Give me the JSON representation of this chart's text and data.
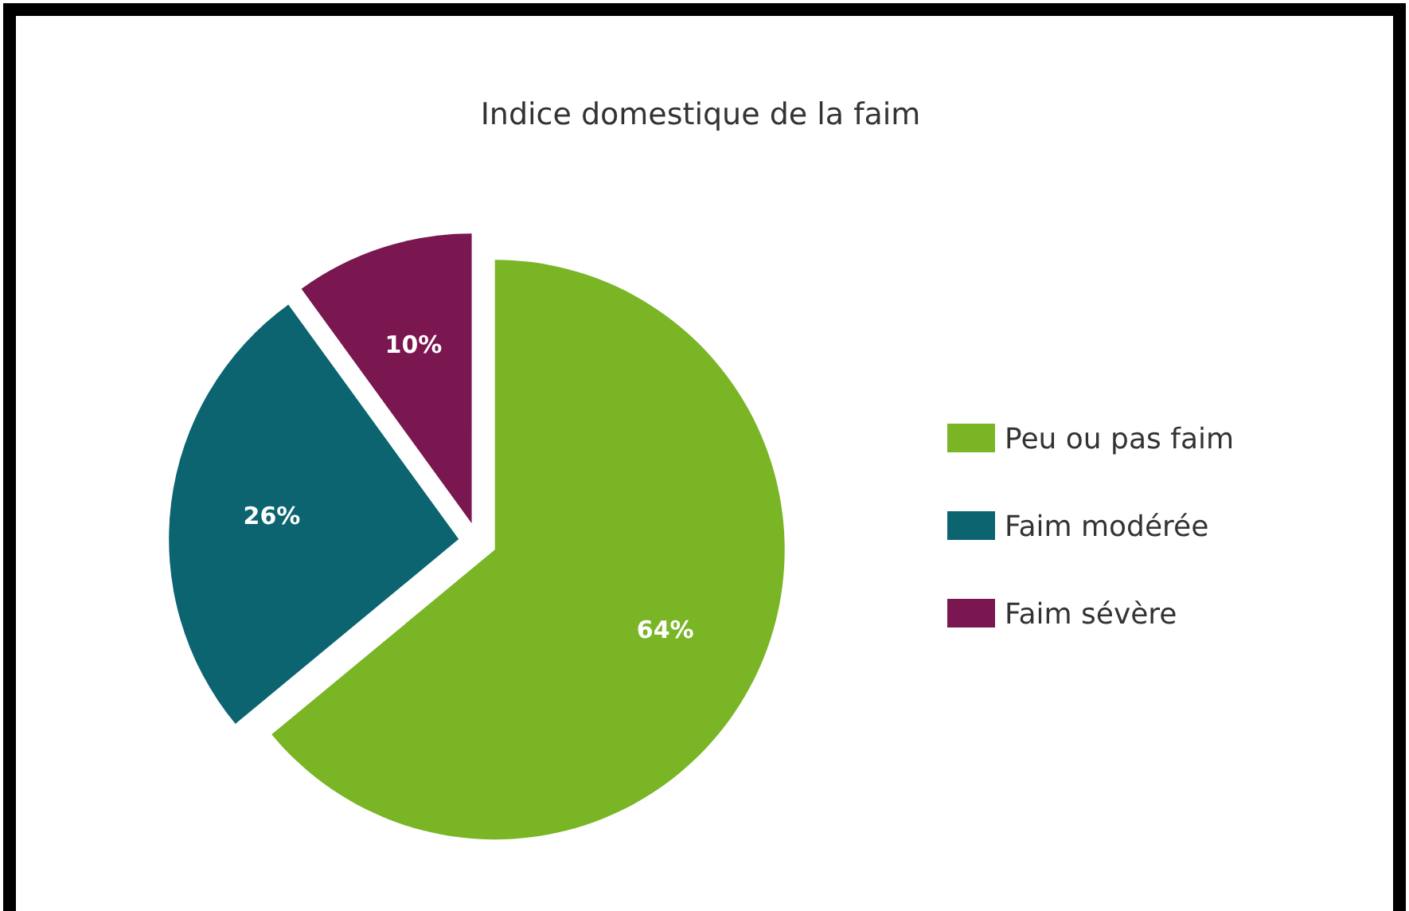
{
  "chart_data": {
    "type": "pie",
    "title": "Indice domestique de la faim",
    "categories": [
      "Peu ou pas faim",
      "Faim modérée",
      "Faim sévère"
    ],
    "values": [
      64,
      26,
      10
    ],
    "colors": [
      "#7ab526",
      "#0b6470",
      "#7a1650"
    ],
    "value_labels": [
      "64%",
      "26%",
      "10%"
    ],
    "legend": "right"
  }
}
